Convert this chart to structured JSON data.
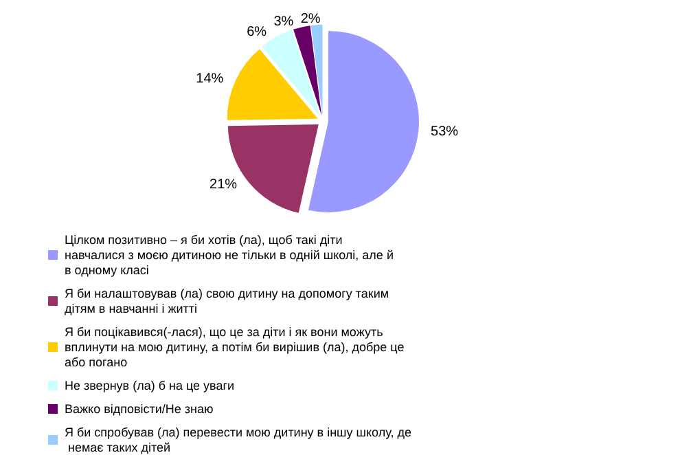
{
  "chart_data": {
    "type": "pie",
    "categories": [
      "Цілком позитивно – я би хотів (ла), щоб такі діти навчалися з моєю дитиною не тільки в одній школі, але й в одному класі",
      "Я би налаштовував (ла) свою дитину на допомогу таким дітям в навчанні і житті",
      "Я би поцікавився(-лася), що це за діти і як вони можуть вплинути на мою дитину, а потім би вирішив (ла), добре це або погано",
      "Не звернув (ла) б на це уваги",
      "Важко відповісти/Не знаю",
      "Я би спробував (ла) перевести мою дитину в іншу школу, де немає таких дітей"
    ],
    "values": [
      53,
      21,
      14,
      6,
      3,
      2
    ],
    "value_labels": [
      "53%",
      "21%",
      "14%",
      "6%",
      "3%",
      "2%"
    ],
    "colors": [
      "#9999ff",
      "#993366",
      "#ffcc00",
      "#ccffff",
      "#660066",
      "#99ccff"
    ],
    "legend": "bottom"
  }
}
